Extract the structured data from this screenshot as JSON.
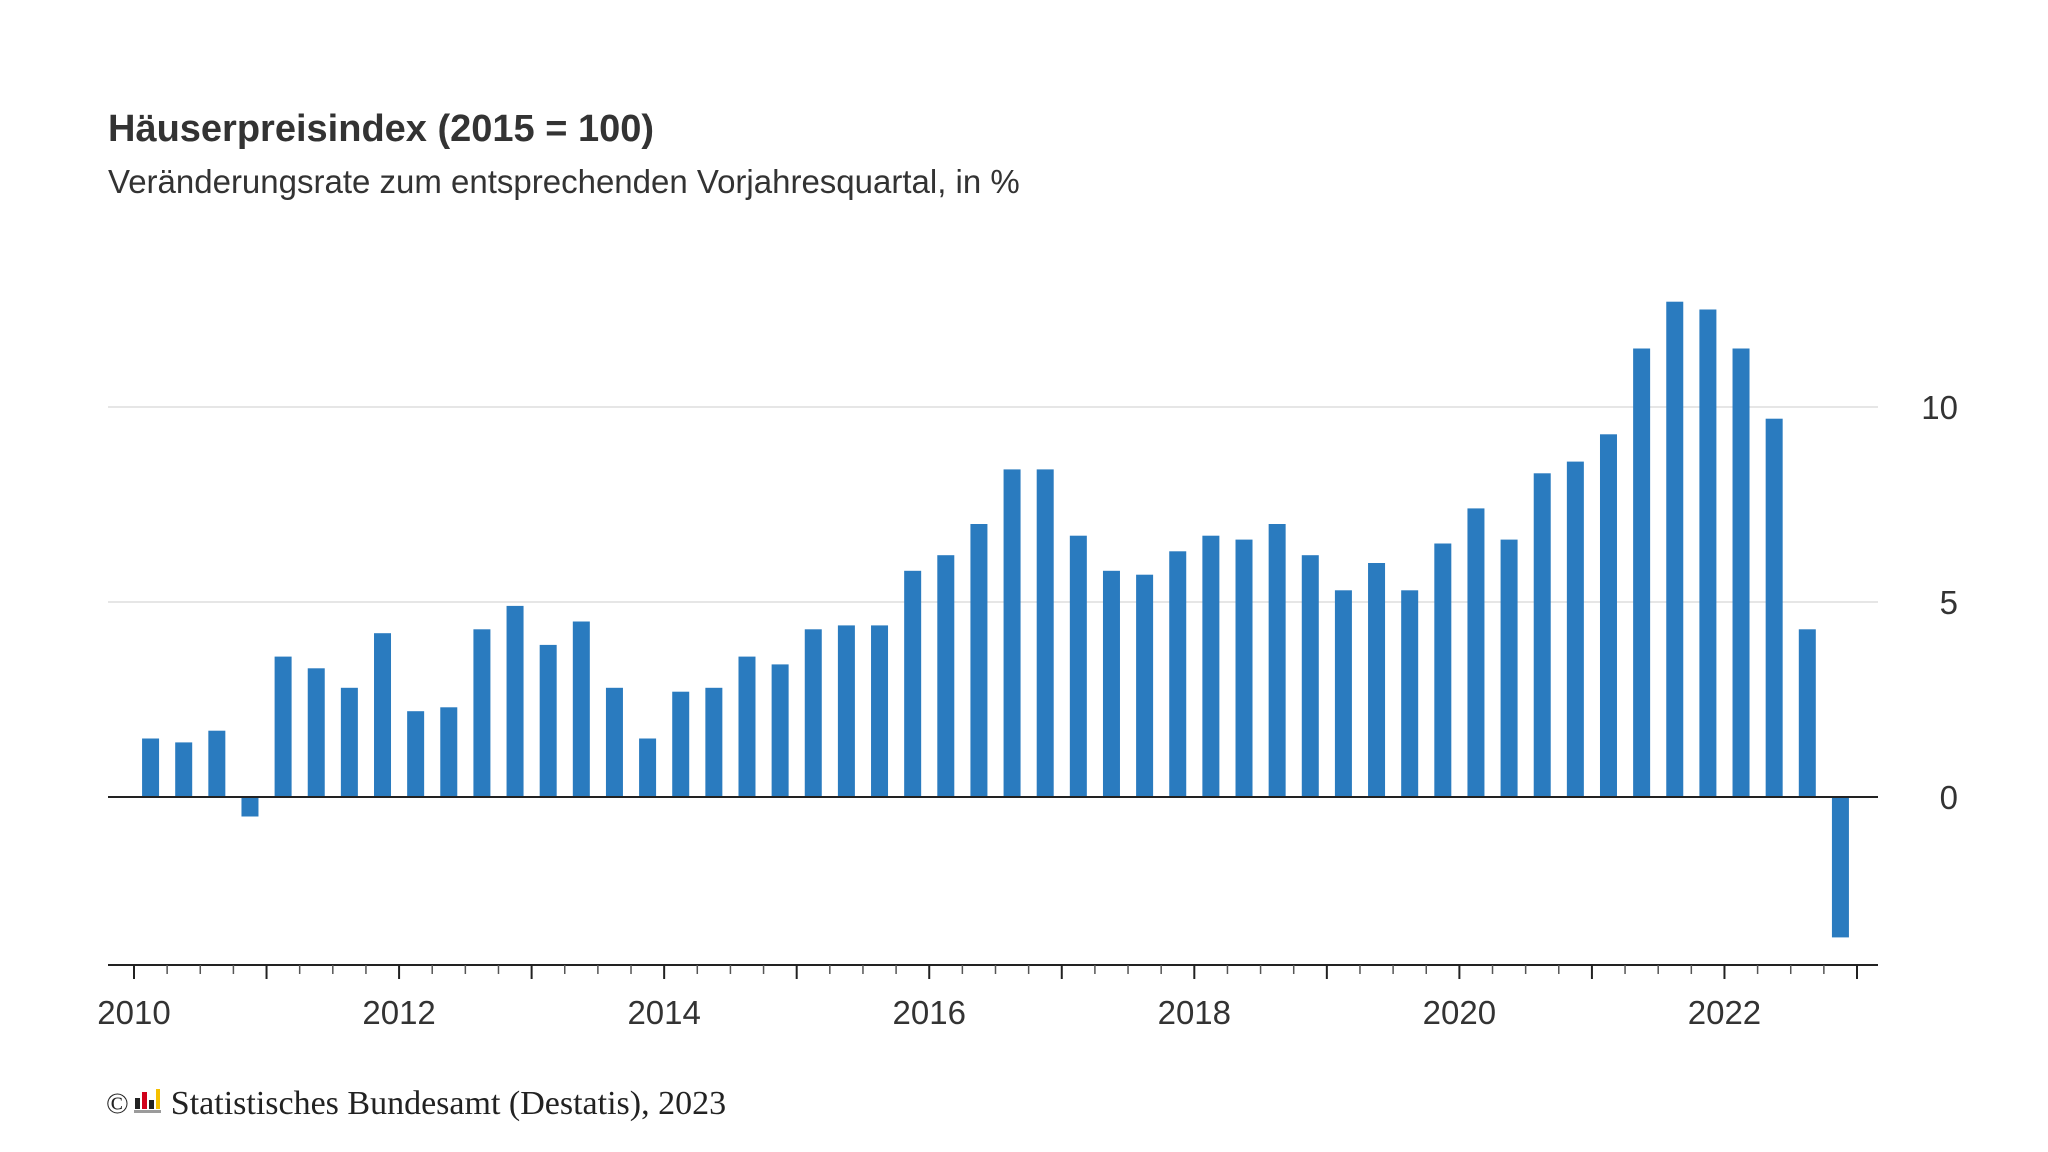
{
  "header": {
    "title": "Häuserpreisindex (2015 = 100)",
    "subtitle": "Veränderungsrate zum entsprechenden Vorjahresquartal, in %"
  },
  "footer": {
    "copyright_symbol": "©",
    "source": "Statistisches Bundesamt (Destatis), 2023"
  },
  "colors": {
    "bar": "#2a7bbf",
    "grid": "#dddddd",
    "axis": "#222222",
    "text": "#333333"
  },
  "chart_data": {
    "type": "bar",
    "title": "Häuserpreisindex (2015 = 100)",
    "subtitle": "Veränderungsrate zum entsprechenden Vorjahresquartal, in %",
    "xlabel": "",
    "ylabel": "",
    "y_axis_position": "right",
    "grid": true,
    "ylim": [
      -4.3,
      12.9
    ],
    "yticks": [
      0,
      5,
      10
    ],
    "x_tick_labels": [
      "2010",
      "2012",
      "2014",
      "2016",
      "2018",
      "2020",
      "2022"
    ],
    "categories": [
      "2010 Q1",
      "2010 Q2",
      "2010 Q3",
      "2010 Q4",
      "2011 Q1",
      "2011 Q2",
      "2011 Q3",
      "2011 Q4",
      "2012 Q1",
      "2012 Q2",
      "2012 Q3",
      "2012 Q4",
      "2013 Q1",
      "2013 Q2",
      "2013 Q3",
      "2013 Q4",
      "2014 Q1",
      "2014 Q2",
      "2014 Q3",
      "2014 Q4",
      "2015 Q1",
      "2015 Q2",
      "2015 Q3",
      "2015 Q4",
      "2016 Q1",
      "2016 Q2",
      "2016 Q3",
      "2016 Q4",
      "2017 Q1",
      "2017 Q2",
      "2017 Q3",
      "2017 Q4",
      "2018 Q1",
      "2018 Q2",
      "2018 Q3",
      "2018 Q4",
      "2019 Q1",
      "2019 Q2",
      "2019 Q3",
      "2019 Q4",
      "2020 Q1",
      "2020 Q2",
      "2020 Q3",
      "2020 Q4",
      "2021 Q1",
      "2021 Q2",
      "2021 Q3",
      "2021 Q4",
      "2022 Q1",
      "2022 Q2",
      "2022 Q3",
      "2022 Q4"
    ],
    "values": [
      1.5,
      1.4,
      1.7,
      -0.5,
      3.6,
      3.3,
      2.8,
      4.2,
      2.2,
      2.3,
      4.3,
      4.9,
      3.9,
      4.5,
      2.8,
      1.5,
      2.7,
      2.8,
      3.6,
      3.4,
      4.3,
      4.4,
      4.4,
      5.8,
      6.2,
      7.0,
      8.4,
      8.4,
      6.7,
      5.8,
      5.7,
      6.3,
      6.7,
      6.6,
      7.0,
      6.2,
      5.3,
      6.0,
      5.3,
      6.5,
      7.4,
      6.6,
      8.3,
      8.6,
      9.3,
      11.5,
      12.7,
      12.5,
      11.5,
      9.7,
      4.3,
      -3.6
    ]
  }
}
